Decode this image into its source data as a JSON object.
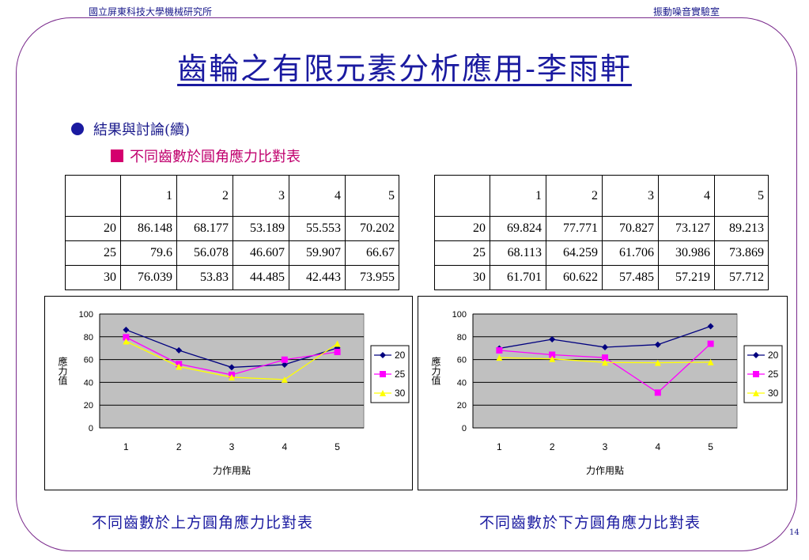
{
  "header": {
    "left": "國立屏東科技大學機械研究所",
    "right": "振動噪音實驗室"
  },
  "title": "齒輪之有限元素分析應用-李雨軒",
  "bullet1": "結果與討論(續)",
  "bullet2": "不同齒數於圓角應力比對表",
  "tables": [
    {
      "header": [
        "",
        "1",
        "2",
        "3",
        "4",
        "5"
      ],
      "rows": [
        [
          "20",
          "86.148",
          "68.177",
          "53.189",
          "55.553",
          "70.202"
        ],
        [
          "25",
          "79.6",
          "56.078",
          "46.607",
          "59.907",
          "66.67"
        ],
        [
          "30",
          "76.039",
          "53.83",
          "44.485",
          "42.443",
          "73.955"
        ]
      ]
    },
    {
      "header": [
        "",
        "1",
        "2",
        "3",
        "4",
        "5"
      ],
      "rows": [
        [
          "20",
          "69.824",
          "77.771",
          "70.827",
          "73.127",
          "89.213"
        ],
        [
          "25",
          "68.113",
          "64.259",
          "61.706",
          "30.986",
          "73.869"
        ],
        [
          "30",
          "61.701",
          "60.622",
          "57.485",
          "57.219",
          "57.712"
        ]
      ]
    }
  ],
  "chart_data": [
    {
      "type": "line",
      "xlabel": "力作用點",
      "ylabel": "應力值",
      "categories": [
        "1",
        "2",
        "3",
        "4",
        "5"
      ],
      "ylim": [
        0,
        100
      ],
      "yticks": [
        "0",
        "20",
        "40",
        "60",
        "80",
        "100"
      ],
      "grid": true,
      "legend": "right",
      "plot_bg": "#c0c0c0",
      "series": [
        {
          "name": "20",
          "color": "#00007f",
          "marker": "diamond",
          "values": [
            86.148,
            68.177,
            53.189,
            55.553,
            70.202
          ]
        },
        {
          "name": "25",
          "color": "#ff00ff",
          "marker": "square",
          "values": [
            79.6,
            56.078,
            46.607,
            59.907,
            66.67
          ]
        },
        {
          "name": "30",
          "color": "#ffff00",
          "marker": "triangle",
          "values": [
            76.039,
            53.83,
            44.485,
            42.443,
            73.955
          ]
        }
      ]
    },
    {
      "type": "line",
      "xlabel": "力作用點",
      "ylabel": "應力值",
      "categories": [
        "1",
        "2",
        "3",
        "4",
        "5"
      ],
      "ylim": [
        0,
        100
      ],
      "yticks": [
        "0",
        "20",
        "40",
        "60",
        "80",
        "100"
      ],
      "grid": true,
      "legend": "right",
      "plot_bg": "#c0c0c0",
      "series": [
        {
          "name": "20",
          "color": "#00007f",
          "marker": "diamond",
          "values": [
            69.824,
            77.771,
            70.827,
            73.127,
            89.213
          ]
        },
        {
          "name": "25",
          "color": "#ff00ff",
          "marker": "square",
          "values": [
            68.113,
            64.259,
            61.706,
            30.986,
            73.869
          ]
        },
        {
          "name": "30",
          "color": "#ffff00",
          "marker": "triangle",
          "values": [
            61.701,
            60.622,
            57.485,
            57.219,
            57.712
          ]
        }
      ]
    }
  ],
  "captions": {
    "left": "不同齒數於上方圓角應力比對表",
    "right": "不同齒數於下方圓角應力比對表"
  },
  "page_number": "14"
}
